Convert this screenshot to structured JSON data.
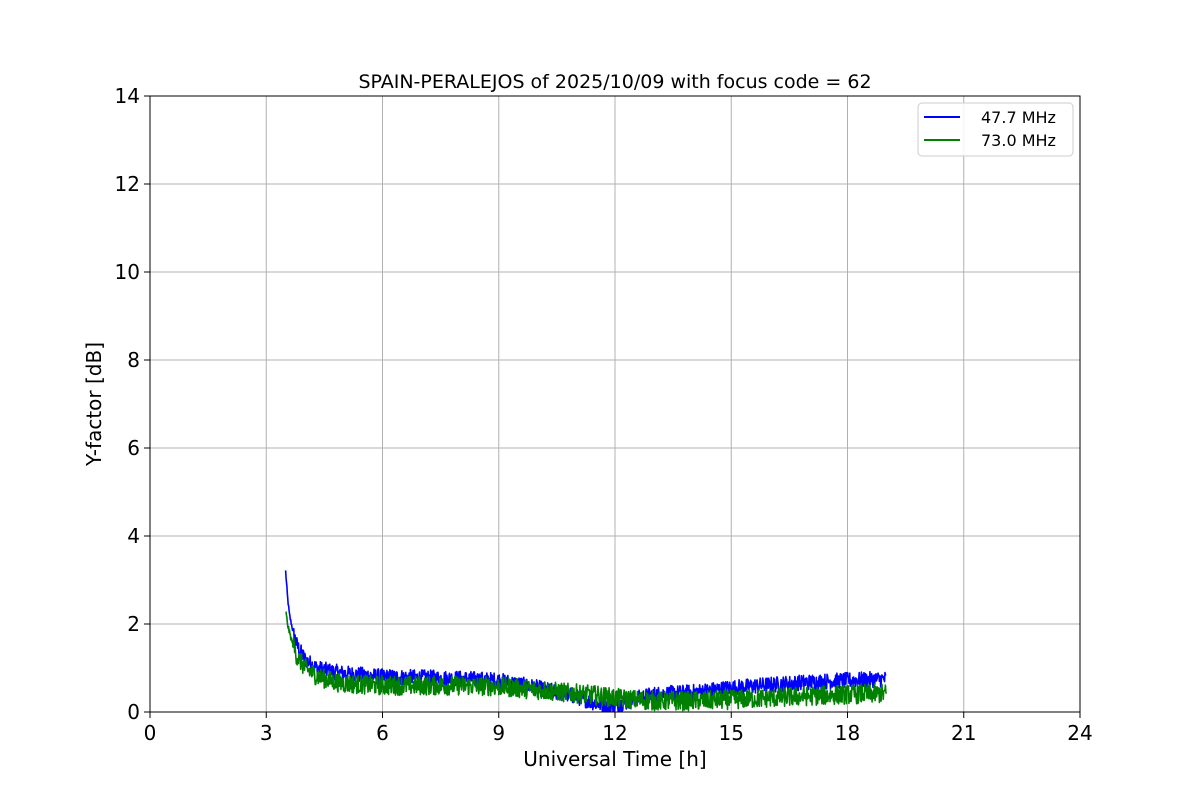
{
  "chart_data": {
    "type": "line",
    "title": "SPAIN-PERALEJOS of 2025/10/09 with focus code = 62",
    "xlabel": "Universal Time [h]",
    "ylabel": "Y-factor [dB]",
    "xlim": [
      0,
      24
    ],
    "ylim": [
      0,
      14
    ],
    "xticks": [
      0,
      3,
      6,
      9,
      12,
      15,
      18,
      21,
      24
    ],
    "yticks": [
      0,
      2,
      4,
      6,
      8,
      10,
      12,
      14
    ],
    "xtick_labels": [
      "0",
      "3",
      "6",
      "9",
      "12",
      "15",
      "18",
      "21",
      "24"
    ],
    "ytick_labels": [
      "0",
      "2",
      "4",
      "6",
      "8",
      "10",
      "12",
      "14"
    ],
    "grid": true,
    "legend_position": "top-right",
    "series": [
      {
        "name": "47.7 MHz",
        "color": "#0000ff",
        "noise_band": 0.18,
        "x": [
          3.5,
          3.55,
          3.6,
          3.7,
          3.8,
          4.0,
          4.3,
          4.7,
          5.0,
          6.0,
          7.0,
          8.0,
          9.0,
          10.0,
          11.0,
          11.5,
          12.0,
          12.5,
          13.0,
          14.0,
          15.0,
          16.0,
          17.0,
          18.0,
          19.0
        ],
        "y": [
          3.2,
          2.6,
          2.2,
          1.8,
          1.5,
          1.2,
          1.0,
          0.92,
          0.88,
          0.8,
          0.78,
          0.76,
          0.72,
          0.55,
          0.35,
          0.2,
          0.12,
          0.3,
          0.4,
          0.45,
          0.55,
          0.62,
          0.68,
          0.72,
          0.75
        ]
      },
      {
        "name": "73.0 MHz",
        "color": "#008000",
        "noise_band": 0.22,
        "x": [
          3.5,
          3.55,
          3.6,
          3.7,
          3.8,
          4.0,
          4.3,
          4.7,
          5.0,
          6.0,
          7.0,
          8.0,
          9.0,
          10.0,
          11.0,
          11.5,
          12.0,
          12.5,
          13.0,
          14.0,
          15.0,
          16.0,
          17.0,
          18.0,
          19.0
        ],
        "y": [
          2.3,
          2.0,
          1.8,
          1.5,
          1.25,
          1.0,
          0.82,
          0.7,
          0.65,
          0.6,
          0.6,
          0.6,
          0.58,
          0.5,
          0.42,
          0.38,
          0.32,
          0.28,
          0.25,
          0.25,
          0.28,
          0.32,
          0.36,
          0.4,
          0.42
        ]
      }
    ]
  }
}
